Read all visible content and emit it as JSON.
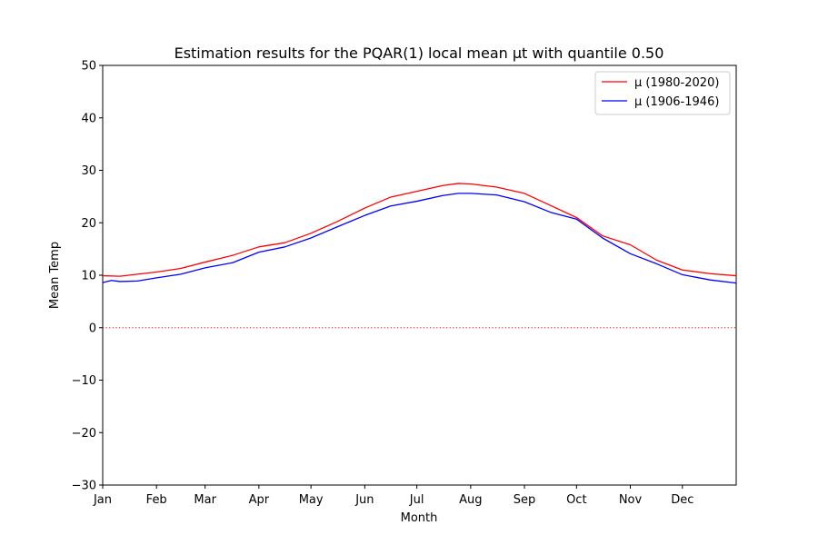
{
  "chart_data": {
    "type": "line",
    "title": "Estimation results for the PQAR(1) local mean μt with quantile 0.50",
    "xlabel": "Month",
    "ylabel": "Mean Temp",
    "xlim": [
      0,
      365
    ],
    "ylim": [
      -30,
      50
    ],
    "yticks": [
      -30,
      -20,
      -10,
      0,
      10,
      20,
      30,
      40,
      50
    ],
    "ytick_labels": [
      "−30",
      "−20",
      "−10",
      "0",
      "10",
      "20",
      "30",
      "40",
      "50"
    ],
    "xticks": [
      {
        "label": "Jan",
        "day": 0
      },
      {
        "label": "Feb",
        "day": 31
      },
      {
        "label": "Mar",
        "day": 59
      },
      {
        "label": "Apr",
        "day": 90
      },
      {
        "label": "May",
        "day": 120
      },
      {
        "label": "Jun",
        "day": 151
      },
      {
        "label": "Jul",
        "day": 181
      },
      {
        "label": "Aug",
        "day": 212
      },
      {
        "label": "Sep",
        "day": 243
      },
      {
        "label": "Oct",
        "day": 273
      },
      {
        "label": "Nov",
        "day": 304
      },
      {
        "label": "Dec",
        "day": 334
      }
    ],
    "reference_line": {
      "y": 0,
      "color": "#ff0000",
      "style": "dotted"
    },
    "legend": {
      "placement": "top-right"
    },
    "grid": false,
    "series": [
      {
        "name": "μ (1980-2020)",
        "color": "#ff0000",
        "x": [
          0,
          10,
          20,
          31,
          45,
          59,
          75,
          90,
          105,
          120,
          135,
          151,
          166,
          181,
          196,
          205,
          212,
          227,
          243,
          258,
          273,
          288,
          304,
          319,
          334,
          350,
          365
        ],
        "y": [
          9.9,
          9.8,
          10.2,
          10.6,
          11.3,
          12.5,
          13.8,
          15.4,
          16.2,
          18.0,
          20.2,
          22.8,
          24.9,
          26.0,
          27.1,
          27.5,
          27.4,
          26.8,
          25.6,
          23.3,
          21.0,
          17.5,
          15.8,
          12.9,
          11.0,
          10.3,
          9.9
        ]
      },
      {
        "name": "μ (1906-1946)",
        "color": "#0000ff",
        "x": [
          0,
          5,
          10,
          20,
          31,
          45,
          59,
          75,
          90,
          105,
          120,
          135,
          151,
          166,
          181,
          196,
          205,
          212,
          227,
          243,
          258,
          273,
          288,
          304,
          319,
          334,
          350,
          365
        ],
        "y": [
          8.6,
          9.0,
          8.8,
          8.9,
          9.5,
          10.2,
          11.4,
          12.4,
          14.4,
          15.4,
          17.1,
          19.2,
          21.4,
          23.2,
          24.1,
          25.2,
          25.6,
          25.6,
          25.3,
          24.0,
          22.0,
          20.7,
          17.1,
          14.1,
          12.2,
          10.1,
          9.1,
          8.5
        ]
      }
    ]
  }
}
